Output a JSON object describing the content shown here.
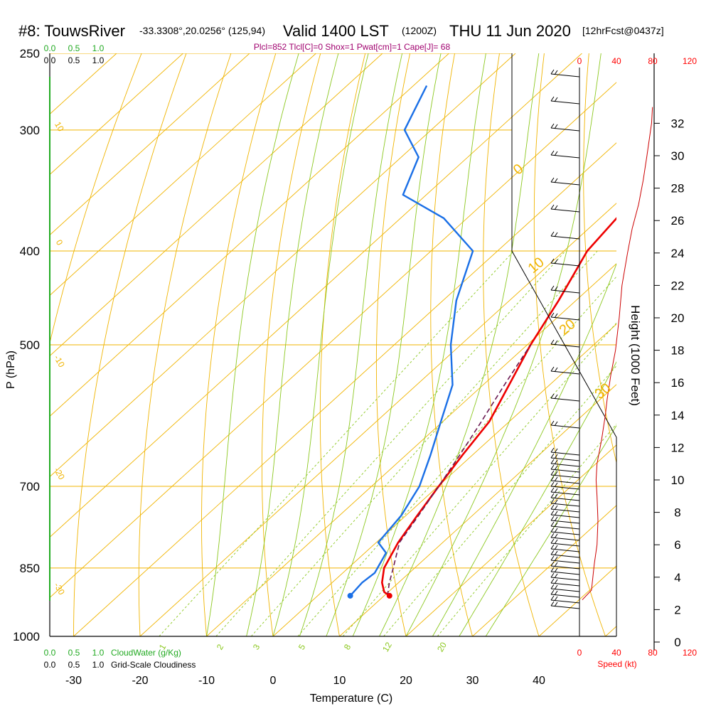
{
  "header": {
    "station": "#8: TouwsRiver",
    "coords": "-33.3308°,20.0256° (125,94)",
    "valid_prefix": "Valid 1400 LST",
    "valid_z": "(1200Z)",
    "date": "THU 11 Jun 2020",
    "fcst": "[12hrFcst@0437z]"
  },
  "params": "Plcl=852 Tlcl[C]=0 Shox=1 Pwat[cm]=1 Cape[J]= 68",
  "chart_data": {
    "type": "line",
    "title": "#8: TouwsRiver Valid 1400 LST (1200Z) THU 11 Jun 2020",
    "xlabel": "Temperature (C)",
    "ylabel": "P (hPa)",
    "right_ylabel": "Height (1000 Feet)",
    "xlim": [
      -34,
      52
    ],
    "ylim": [
      1000,
      250
    ],
    "x_ticks": [
      "-30",
      "-20",
      "-10",
      "0",
      "10",
      "20",
      "30",
      "40"
    ],
    "p_ticks": [
      "250",
      "300",
      "400",
      "500",
      "700",
      "850",
      "1000"
    ],
    "height_ticks": [
      "0",
      "2",
      "4",
      "6",
      "8",
      "10",
      "12",
      "14",
      "16",
      "18",
      "20",
      "22",
      "24",
      "26",
      "28",
      "30",
      "32"
    ],
    "speed_ticks": [
      "0",
      "40",
      "80",
      "120"
    ],
    "speed_label": "Speed (kt)",
    "cloud_ticks": [
      "0.0",
      "0.5",
      "1.0"
    ],
    "cloudwater_label": "CloudWater (g/Kg)",
    "cloudiness_label": "Grid-Scale Cloudiness",
    "mixing_ratio_labels": [
      "1",
      "2",
      "3",
      "5",
      "8",
      "12",
      "20"
    ],
    "temperature_isopleth_labels": [
      "10",
      "0",
      "-10",
      "-20",
      "-30"
    ],
    "dry_adiabat_labels": [
      "0",
      "10",
      "20",
      "30"
    ],
    "series": [
      {
        "name": "Temperature",
        "color": "#ee0000",
        "points": [
          [
            10.8,
            908
          ],
          [
            9.4,
            900
          ],
          [
            7.5,
            880
          ],
          [
            5.4,
            850
          ],
          [
            3.3,
            800
          ],
          [
            1.7,
            750
          ],
          [
            0.1,
            700
          ],
          [
            -1.5,
            650
          ],
          [
            -3.0,
            600
          ],
          [
            -6.1,
            550
          ],
          [
            -9.5,
            500
          ],
          [
            -12.6,
            450
          ],
          [
            -16.5,
            400
          ],
          [
            -17.5,
            370
          ],
          [
            -18.3,
            350
          ],
          [
            -18.6,
            320
          ],
          [
            -18.1,
            300
          ],
          [
            -17.8,
            270
          ]
        ]
      },
      {
        "name": "Dewpoint",
        "color": "#1a6fe6",
        "points": [
          [
            4.9,
            908
          ],
          [
            4.5,
            880
          ],
          [
            4.8,
            860
          ],
          [
            3.2,
            820
          ],
          [
            0.3,
            800
          ],
          [
            -0.7,
            750
          ],
          [
            -2.8,
            700
          ],
          [
            -6.3,
            650
          ],
          [
            -10.3,
            600
          ],
          [
            -14.6,
            550
          ],
          [
            -21.5,
            500
          ],
          [
            -28.0,
            450
          ],
          [
            -33.7,
            400
          ],
          [
            -43.5,
            370
          ],
          [
            -53.5,
            350
          ],
          [
            -57.4,
            320
          ],
          [
            -64.0,
            300
          ],
          [
            -68.0,
            270
          ]
        ]
      },
      {
        "name": "Parcel",
        "color": "#6b1a52",
        "points": [
          [
            10.5,
            908
          ],
          [
            8.6,
            880
          ],
          [
            6.9,
            852
          ],
          [
            3.5,
            800
          ],
          [
            1.9,
            750
          ],
          [
            0.1,
            700
          ],
          [
            -1.9,
            650
          ],
          [
            -4.2,
            600
          ],
          [
            -6.8,
            550
          ],
          [
            -9.5,
            500
          ]
        ]
      }
    ],
    "wind_speed_profile": {
      "units": "kt",
      "points": [
        [
          0.3,
          2.6
        ],
        [
          1.3,
          3.2
        ],
        [
          1.6,
          4.8
        ],
        [
          1.9,
          6.0
        ],
        [
          2.0,
          7.5
        ],
        [
          1.9,
          9.0
        ],
        [
          1.8,
          10.0
        ],
        [
          1.9,
          11.0
        ],
        [
          2.4,
          12.5
        ],
        [
          2.8,
          14.0
        ],
        [
          3.0,
          15.0
        ],
        [
          3.4,
          16.5
        ],
        [
          3.9,
          18.0
        ],
        [
          4.3,
          20.0
        ],
        [
          4.6,
          22.0
        ],
        [
          5.2,
          24.0
        ],
        [
          5.7,
          25.5
        ],
        [
          6.4,
          27.0
        ],
        [
          6.9,
          28.5
        ],
        [
          7.3,
          30.0
        ],
        [
          7.8,
          32.0
        ],
        [
          7.9,
          33.0
        ]
      ]
    },
    "surface_temperature": 10.8,
    "surface_dewpoint": 4.9
  },
  "colors": {
    "isobar": "#f0b400",
    "dry_adiabat": "#f0b400",
    "isotherm": "#f0b400",
    "moist_adiabat": "#8cc820",
    "mixing_ratio": "#8cc820",
    "cloud_axis": "#22aa22",
    "speed": "#cc0000"
  }
}
